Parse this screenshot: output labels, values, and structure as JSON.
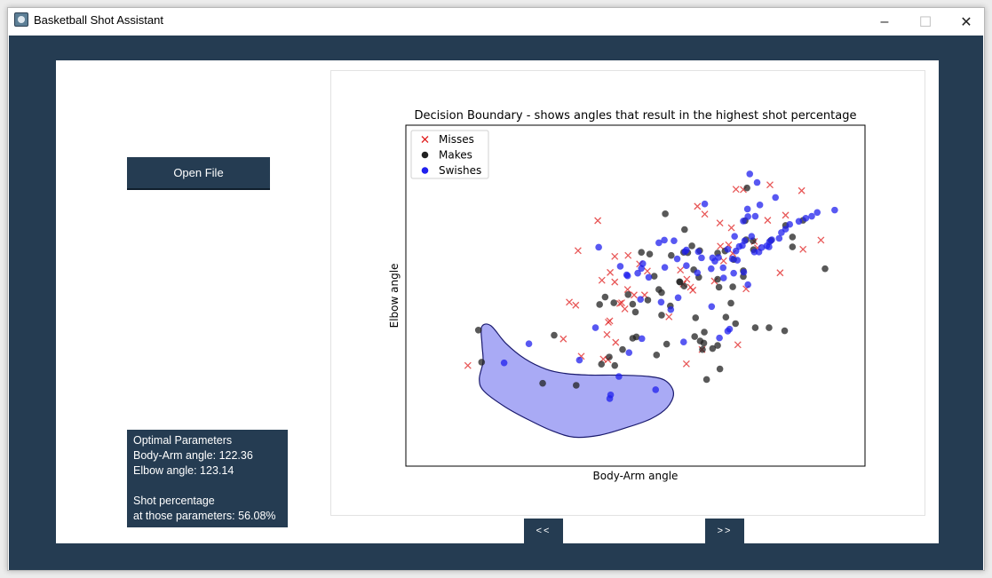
{
  "window": {
    "title": "Basketball Shot Assistant",
    "minimize_glyph": "–",
    "maximize_glyph": "☐",
    "close_glyph": "✕"
  },
  "sidebar": {
    "open_file_label": "Open File"
  },
  "info_panel": {
    "text": "Optimal Parameters\nBody-Arm angle: 122.36\nElbow angle: 123.14\n\nShot percentage\nat those parameters: 56.08%"
  },
  "navigation": {
    "prev_label": "<<",
    "next_label": ">>"
  },
  "colors": {
    "frame": "#253c52",
    "misses": "#e02020",
    "makes": "#222222",
    "swishes": "#2020ee",
    "boundary_fill": "#a9aaf5",
    "boundary_edge": "#1a1a6e"
  },
  "chart_data": {
    "type": "scatter",
    "title": "Decision Boundary - shows angles that result in the highest shot percentage",
    "xlabel": "Body-Arm angle",
    "ylabel": "Elbow angle",
    "ticks_visible": false,
    "xlim": [
      0,
      100
    ],
    "ylim": [
      0,
      100
    ],
    "legend": {
      "position": "top-left",
      "entries": [
        "Misses",
        "Makes",
        "Swishes"
      ]
    },
    "series": [
      {
        "name": "Misses",
        "marker": "x",
        "points": [
          [
            13.5,
            29.5
          ],
          [
            41.8,
            72
          ],
          [
            37.5,
            63.2
          ],
          [
            45.5,
            61.5
          ],
          [
            42.7,
            54.5
          ],
          [
            48.4,
            61.8
          ],
          [
            50.9,
            59.3
          ],
          [
            45.5,
            54
          ],
          [
            46.6,
            47.7
          ],
          [
            44.5,
            56.8
          ],
          [
            47,
            47.9
          ],
          [
            48.3,
            51.8
          ],
          [
            52.6,
            57.2
          ],
          [
            47.7,
            46.1
          ],
          [
            44.1,
            42.2
          ],
          [
            49.7,
            50.2
          ],
          [
            43.8,
            38.6
          ],
          [
            52,
            50.2
          ],
          [
            45.7,
            36.3
          ],
          [
            44.4,
            42.6
          ],
          [
            44,
            31.2
          ],
          [
            43,
            31.4
          ],
          [
            38.2,
            32.2
          ],
          [
            34.3,
            37.3
          ],
          [
            35.6,
            48.1
          ],
          [
            37,
            47.2
          ],
          [
            57.3,
            43.8
          ],
          [
            59.8,
            57.5
          ],
          [
            60.4,
            53.4
          ],
          [
            62,
            52.5
          ],
          [
            62.5,
            51.6
          ],
          [
            63.5,
            76.2
          ],
          [
            61.2,
            54.8
          ],
          [
            61.1,
            30
          ],
          [
            64.5,
            34.2
          ],
          [
            68.4,
            71.3
          ],
          [
            65.1,
            73.9
          ],
          [
            68.5,
            64.5
          ],
          [
            70.9,
            69.9
          ],
          [
            69.2,
            60.2
          ],
          [
            71.9,
            81.2
          ],
          [
            67.2,
            54.3
          ],
          [
            70.3,
            64.9
          ],
          [
            71.2,
            62.4
          ],
          [
            73.5,
            81.1
          ],
          [
            72.3,
            35.6
          ],
          [
            74.1,
            52
          ],
          [
            75.9,
            65.9
          ],
          [
            78.8,
            72.1
          ],
          [
            79.3,
            82.5
          ],
          [
            82.7,
            73.6
          ],
          [
            86.5,
            63.6
          ],
          [
            86.2,
            80.8
          ],
          [
            81.5,
            56.7
          ],
          [
            90.4,
            66.3
          ],
          [
            76.6,
            64
          ]
        ]
      },
      {
        "name": "Makes",
        "marker": "o",
        "points": [
          [
            15.8,
            39.9
          ],
          [
            16.5,
            30.5
          ],
          [
            29.8,
            24.3
          ],
          [
            37.1,
            23.7
          ],
          [
            32.3,
            38.4
          ],
          [
            42.2,
            47.4
          ],
          [
            43.4,
            49.6
          ],
          [
            45.3,
            47.9
          ],
          [
            48.4,
            50.3
          ],
          [
            49.4,
            47.5
          ],
          [
            51.3,
            62.7
          ],
          [
            50,
            45.2
          ],
          [
            53.1,
            62.2
          ],
          [
            52.7,
            48.7
          ],
          [
            45.5,
            29.5
          ],
          [
            44.3,
            32
          ],
          [
            47.2,
            34.2
          ],
          [
            42.6,
            29.9
          ],
          [
            49.4,
            37.5
          ],
          [
            50.2,
            37.9
          ],
          [
            54.6,
            32.6
          ],
          [
            56.8,
            35.8
          ],
          [
            54.1,
            55.7
          ],
          [
            55.7,
            44.3
          ],
          [
            55.1,
            51.8
          ],
          [
            55.7,
            50.9
          ],
          [
            57.8,
            61.8
          ],
          [
            59.6,
            54.1
          ],
          [
            60.6,
            52.8
          ],
          [
            57.6,
            47
          ],
          [
            56.5,
            74
          ],
          [
            60.7,
            69.4
          ],
          [
            61.4,
            62.6
          ],
          [
            62.3,
            64.6
          ],
          [
            64,
            63.2
          ],
          [
            63.8,
            55.4
          ],
          [
            60.5,
            62.7
          ],
          [
            62.7,
            57.6
          ],
          [
            59.7,
            54
          ],
          [
            73.9,
            72
          ],
          [
            74.3,
            81.6
          ],
          [
            74.1,
            66.4
          ],
          [
            73.5,
            57.3
          ],
          [
            71.4,
            60.6
          ],
          [
            67.9,
            62.5
          ],
          [
            69.5,
            63.1
          ],
          [
            75.7,
            63.5
          ],
          [
            75.6,
            66.1
          ],
          [
            73.5,
            55.6
          ],
          [
            68.2,
            52.5
          ],
          [
            67.9,
            54.8
          ],
          [
            64.1,
            36.7
          ],
          [
            79.5,
            66.2
          ],
          [
            82.5,
            39.7
          ],
          [
            84.2,
            64.3
          ],
          [
            82.7,
            70.6
          ],
          [
            84.2,
            67.2
          ],
          [
            86.5,
            72.1
          ],
          [
            91.3,
            57.9
          ],
          [
            79.1,
            40.6
          ],
          [
            76.1,
            40.6
          ],
          [
            71.8,
            41.8
          ],
          [
            65,
            39.3
          ],
          [
            69.7,
            43.7
          ],
          [
            71.2,
            52.6
          ],
          [
            70.8,
            47.8
          ],
          [
            67.9,
            35.4
          ],
          [
            63.1,
            43.5
          ],
          [
            64.9,
            36.1
          ],
          [
            62.9,
            38
          ],
          [
            64.6,
            34.2
          ],
          [
            65.5,
            25.4
          ],
          [
            68.4,
            28.5
          ],
          [
            66.8,
            34.5
          ]
        ]
      },
      {
        "name": "Swishes",
        "marker": "o",
        "points": [
          [
            42,
            64.2
          ],
          [
            46.7,
            58.6
          ],
          [
            48.3,
            55.8
          ],
          [
            51.6,
            59.4
          ],
          [
            52.9,
            55.4
          ],
          [
            56.4,
            58.3
          ],
          [
            63.7,
            62.9
          ],
          [
            64.4,
            61.1
          ],
          [
            63.5,
            56.7
          ],
          [
            67.3,
            60.1
          ],
          [
            71.6,
            67.4
          ],
          [
            73.5,
            71.9
          ],
          [
            74.5,
            73.2
          ],
          [
            76.1,
            73.3
          ],
          [
            71.1,
            60.8
          ],
          [
            74.5,
            53.2
          ],
          [
            66.5,
            57.9
          ],
          [
            68.1,
            61.2
          ],
          [
            69.1,
            58.2
          ],
          [
            60.5,
            36.4
          ],
          [
            51.4,
            37.4
          ],
          [
            48.6,
            33.3
          ],
          [
            46.4,
            26.3
          ],
          [
            44.6,
            20.9
          ],
          [
            44.4,
            19.8
          ],
          [
            54.4,
            22.4
          ],
          [
            76.5,
            83.2
          ],
          [
            74.9,
            85.7
          ],
          [
            70.5,
            40.2
          ],
          [
            68.3,
            37.6
          ],
          [
            66.6,
            46.8
          ],
          [
            70.1,
            39.6
          ],
          [
            65.1,
            76.9
          ],
          [
            59.3,
            49.4
          ],
          [
            51.3,
            58
          ],
          [
            50.5,
            56.6
          ],
          [
            48.1,
            56.1
          ],
          [
            61.1,
            58.8
          ],
          [
            55.1,
            65.5
          ],
          [
            56.3,
            66.3
          ],
          [
            73.6,
            56.9
          ],
          [
            69.2,
            55.2
          ],
          [
            21.4,
            30.3
          ],
          [
            26.8,
            35.9
          ],
          [
            37.8,
            31.1
          ],
          [
            41.3,
            40.6
          ],
          [
            51.1,
            48.9
          ],
          [
            55.6,
            48.1
          ],
          [
            57.7,
            45.9
          ],
          [
            58.4,
            66.1
          ],
          [
            59.1,
            60.8
          ],
          [
            60.8,
            62.9
          ],
          [
            61.1,
            63.4
          ],
          [
            66.8,
            61.1
          ],
          [
            70.1,
            63.6
          ],
          [
            71.4,
            56.6
          ],
          [
            71.9,
            63.1
          ],
          [
            72.2,
            60.4
          ],
          [
            72.6,
            64.4
          ],
          [
            73.3,
            64.7
          ],
          [
            73.8,
            66.1
          ],
          [
            75.3,
            67.4
          ],
          [
            75.9,
            62.8
          ],
          [
            76.9,
            62.8
          ],
          [
            77.5,
            64.1
          ],
          [
            78.6,
            64.6
          ],
          [
            79.1,
            64.3
          ],
          [
            79.2,
            65.8
          ],
          [
            79.7,
            66.4
          ],
          [
            81.3,
            66.8
          ],
          [
            81.8,
            68.5
          ],
          [
            82.7,
            69.5
          ],
          [
            83.6,
            70.9
          ],
          [
            85.6,
            71.8
          ],
          [
            87.1,
            72.7
          ],
          [
            88.4,
            73.3
          ],
          [
            89.6,
            74.4
          ],
          [
            93.4,
            75.1
          ],
          [
            74.4,
            75.4
          ],
          [
            77.1,
            76.6
          ],
          [
            80.5,
            78.8
          ]
        ]
      }
    ],
    "boundary": {
      "label": "",
      "outline": [
        [
          16.5,
          40.8
        ],
        [
          18.5,
          41.2
        ],
        [
          21.8,
          36
        ],
        [
          25.9,
          31.5
        ],
        [
          30.6,
          28.4
        ],
        [
          35.1,
          27.1
        ],
        [
          40.3,
          26.7
        ],
        [
          46,
          26.7
        ],
        [
          52.9,
          26.3
        ],
        [
          56.6,
          25
        ],
        [
          58.3,
          21.4
        ],
        [
          56.9,
          17.2
        ],
        [
          53.4,
          13.9
        ],
        [
          48.3,
          11.4
        ],
        [
          42.3,
          9.1
        ],
        [
          36.6,
          8.5
        ],
        [
          31.8,
          10.4
        ],
        [
          27,
          13.4
        ],
        [
          21.6,
          17.4
        ],
        [
          17,
          22
        ],
        [
          16,
          25.5
        ],
        [
          16.8,
          30.6
        ],
        [
          16.6,
          35.5
        ]
      ]
    }
  }
}
